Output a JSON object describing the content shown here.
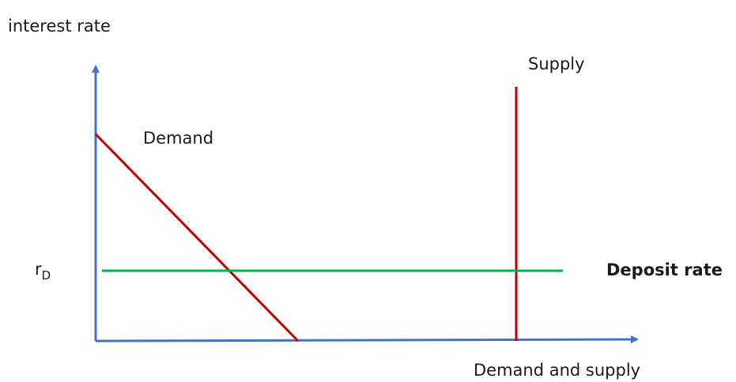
{
  "diagram": {
    "y_axis_label": "interest rate",
    "x_axis_label": "Demand and supply",
    "demand_label": "Demand",
    "supply_label": "Supply",
    "rate_symbol": "r",
    "rate_subscript": "D",
    "deposit_rate_label": "Deposit rate",
    "colors": {
      "axes": "#4472c4",
      "demand": "#c00000",
      "supply": "#c00000",
      "deposit_rate": "#00b050"
    }
  }
}
